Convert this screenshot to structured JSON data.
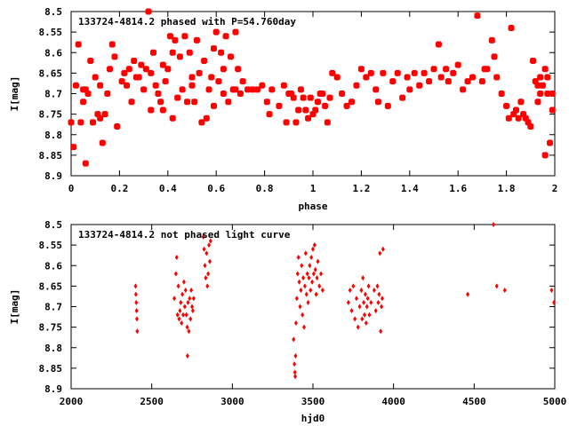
{
  "chart_data": [
    {
      "type": "scatter",
      "title": "133724-4814.2 phased with P=54.760day",
      "xlabel": "phase",
      "ylabel": "I[mag]",
      "xlim": [
        0,
        2
      ],
      "ylim": [
        8.5,
        8.9
      ],
      "y_inverted": true,
      "grid": false,
      "marker_color": "#ff0000",
      "marker": "filled-square",
      "x_ticks": [
        0,
        0.2,
        0.4,
        0.6,
        0.8,
        1,
        1.2,
        1.4,
        1.6,
        1.8,
        2
      ],
      "x_tick_labels": [
        "0",
        "0.2",
        "0.4",
        "0.6",
        "0.8",
        "1",
        "1.2",
        "1.4",
        "1.6",
        "1.8",
        "2"
      ],
      "y_ticks": [
        8.5,
        8.55,
        8.6,
        8.65,
        8.7,
        8.75,
        8.8,
        8.85,
        8.9
      ],
      "y_tick_labels": [
        "8.5",
        "8.55",
        "8.6",
        "8.65",
        "8.7",
        "8.75",
        "8.8",
        "8.85",
        "8.9"
      ],
      "points": [
        [
          0.0,
          8.77
        ],
        [
          0.01,
          8.83
        ],
        [
          0.02,
          8.68
        ],
        [
          0.03,
          8.58
        ],
        [
          0.04,
          8.77
        ],
        [
          0.05,
          8.69
        ],
        [
          0.05,
          8.72
        ],
        [
          0.06,
          8.87
        ],
        [
          0.06,
          8.69
        ],
        [
          0.07,
          8.7
        ],
        [
          0.08,
          8.62
        ],
        [
          0.09,
          8.77
        ],
        [
          0.1,
          8.66
        ],
        [
          0.11,
          8.75
        ],
        [
          0.12,
          8.76
        ],
        [
          0.12,
          8.68
        ],
        [
          0.13,
          8.82
        ],
        [
          0.14,
          8.75
        ],
        [
          0.15,
          8.7
        ],
        [
          0.16,
          8.64
        ],
        [
          0.17,
          8.58
        ],
        [
          0.18,
          8.61
        ],
        [
          0.19,
          8.78
        ],
        [
          0.21,
          8.67
        ],
        [
          0.22,
          8.65
        ],
        [
          0.23,
          8.68
        ],
        [
          0.24,
          8.64
        ],
        [
          0.25,
          8.72
        ],
        [
          0.26,
          8.62
        ],
        [
          0.27,
          8.66
        ],
        [
          0.28,
          8.66
        ],
        [
          0.29,
          8.63
        ],
        [
          0.3,
          8.69
        ],
        [
          0.31,
          8.64
        ],
        [
          0.32,
          8.5
        ],
        [
          0.33,
          8.74
        ],
        [
          0.33,
          8.65
        ],
        [
          0.34,
          8.6
        ],
        [
          0.35,
          8.68
        ],
        [
          0.36,
          8.7
        ],
        [
          0.37,
          8.72
        ],
        [
          0.38,
          8.63
        ],
        [
          0.38,
          8.74
        ],
        [
          0.39,
          8.67
        ],
        [
          0.4,
          8.64
        ],
        [
          0.41,
          8.56
        ],
        [
          0.42,
          8.6
        ],
        [
          0.42,
          8.76
        ],
        [
          0.43,
          8.57
        ],
        [
          0.44,
          8.71
        ],
        [
          0.45,
          8.61
        ],
        [
          0.46,
          8.69
        ],
        [
          0.47,
          8.56
        ],
        [
          0.48,
          8.72
        ],
        [
          0.49,
          8.6
        ],
        [
          0.5,
          8.66
        ],
        [
          0.5,
          8.68
        ],
        [
          0.51,
          8.72
        ],
        [
          0.52,
          8.57
        ],
        [
          0.53,
          8.65
        ],
        [
          0.54,
          8.77
        ],
        [
          0.55,
          8.62
        ],
        [
          0.56,
          8.76
        ],
        [
          0.57,
          8.69
        ],
        [
          0.58,
          8.66
        ],
        [
          0.59,
          8.59
        ],
        [
          0.59,
          8.73
        ],
        [
          0.6,
          8.55
        ],
        [
          0.61,
          8.67
        ],
        [
          0.62,
          8.6
        ],
        [
          0.63,
          8.7
        ],
        [
          0.63,
          8.64
        ],
        [
          0.64,
          8.56
        ],
        [
          0.65,
          8.72
        ],
        [
          0.66,
          8.61
        ],
        [
          0.67,
          8.69
        ],
        [
          0.68,
          8.55
        ],
        [
          0.68,
          8.69
        ],
        [
          0.69,
          8.64
        ],
        [
          0.7,
          8.7
        ],
        [
          0.71,
          8.67
        ],
        [
          0.73,
          8.69
        ],
        [
          0.75,
          8.69
        ],
        [
          0.77,
          8.69
        ],
        [
          0.79,
          8.68
        ],
        [
          0.81,
          8.72
        ],
        [
          0.82,
          8.75
        ],
        [
          0.83,
          8.69
        ],
        [
          0.86,
          8.73
        ],
        [
          0.88,
          8.68
        ],
        [
          0.89,
          8.77
        ],
        [
          0.9,
          8.7
        ],
        [
          0.91,
          8.7
        ],
        [
          0.92,
          8.71
        ],
        [
          0.93,
          8.77
        ],
        [
          0.94,
          8.74
        ],
        [
          0.95,
          8.69
        ],
        [
          0.96,
          8.71
        ],
        [
          0.97,
          8.74
        ],
        [
          0.98,
          8.76
        ],
        [
          0.99,
          8.71
        ],
        [
          1.0,
          8.75
        ],
        [
          1.01,
          8.74
        ],
        [
          1.02,
          8.72
        ],
        [
          1.03,
          8.7
        ],
        [
          1.04,
          8.7
        ],
        [
          1.05,
          8.73
        ],
        [
          1.06,
          8.77
        ],
        [
          1.07,
          8.71
        ],
        [
          1.08,
          8.65
        ],
        [
          1.1,
          8.66
        ],
        [
          1.12,
          8.7
        ],
        [
          1.14,
          8.73
        ],
        [
          1.16,
          8.72
        ],
        [
          1.18,
          8.68
        ],
        [
          1.2,
          8.64
        ],
        [
          1.22,
          8.66
        ],
        [
          1.24,
          8.65
        ],
        [
          1.26,
          8.69
        ],
        [
          1.27,
          8.72
        ],
        [
          1.29,
          8.65
        ],
        [
          1.31,
          8.73
        ],
        [
          1.33,
          8.67
        ],
        [
          1.35,
          8.65
        ],
        [
          1.37,
          8.71
        ],
        [
          1.39,
          8.66
        ],
        [
          1.4,
          8.69
        ],
        [
          1.42,
          8.65
        ],
        [
          1.44,
          8.68
        ],
        [
          1.46,
          8.65
        ],
        [
          1.48,
          8.67
        ],
        [
          1.5,
          8.64
        ],
        [
          1.52,
          8.58
        ],
        [
          1.53,
          8.66
        ],
        [
          1.55,
          8.64
        ],
        [
          1.56,
          8.67
        ],
        [
          1.58,
          8.65
        ],
        [
          1.6,
          8.63
        ],
        [
          1.62,
          8.69
        ],
        [
          1.64,
          8.67
        ],
        [
          1.66,
          8.66
        ],
        [
          1.68,
          8.51
        ],
        [
          1.7,
          8.67
        ],
        [
          1.71,
          8.64
        ],
        [
          1.72,
          8.64
        ],
        [
          1.74,
          8.57
        ],
        [
          1.75,
          8.61
        ],
        [
          1.76,
          8.66
        ],
        [
          1.78,
          8.7
        ],
        [
          1.8,
          8.73
        ],
        [
          1.81,
          8.76
        ],
        [
          1.82,
          8.54
        ],
        [
          1.83,
          8.75
        ],
        [
          1.84,
          8.74
        ],
        [
          1.85,
          8.76
        ],
        [
          1.86,
          8.72
        ],
        [
          1.87,
          8.75
        ],
        [
          1.88,
          8.76
        ],
        [
          1.89,
          8.77
        ],
        [
          1.9,
          8.78
        ],
        [
          1.91,
          8.62
        ],
        [
          1.92,
          8.67
        ],
        [
          1.93,
          8.68
        ],
        [
          1.93,
          8.72
        ],
        [
          1.94,
          8.66
        ],
        [
          1.94,
          8.7
        ],
        [
          1.95,
          8.68
        ],
        [
          1.96,
          8.64
        ],
        [
          1.96,
          8.85
        ],
        [
          1.97,
          8.7
        ],
        [
          1.97,
          8.66
        ],
        [
          1.98,
          8.82
        ],
        [
          1.99,
          8.74
        ],
        [
          1.99,
          8.7
        ]
      ]
    },
    {
      "type": "scatter",
      "title": "133724-4814.2 not phased light curve",
      "xlabel": "hjd0",
      "ylabel": "I[mag]",
      "xlim": [
        2000,
        5000
      ],
      "ylim": [
        8.5,
        8.9
      ],
      "y_inverted": true,
      "grid": false,
      "marker_color": "#ff0000",
      "marker": "diamond",
      "x_ticks": [
        2000,
        2500,
        3000,
        3500,
        4000,
        4500,
        5000
      ],
      "x_tick_labels": [
        "2000",
        "2500",
        "3000",
        "3500",
        "4000",
        "4500",
        "5000"
      ],
      "y_ticks": [
        8.5,
        8.55,
        8.6,
        8.65,
        8.7,
        8.75,
        8.8,
        8.85,
        8.9
      ],
      "y_tick_labels": [
        "8.5",
        "8.55",
        "8.6",
        "8.65",
        "8.7",
        "8.75",
        "8.8",
        "8.85",
        "8.9"
      ],
      "points": [
        [
          2400,
          8.65
        ],
        [
          2402,
          8.67
        ],
        [
          2404,
          8.69
        ],
        [
          2406,
          8.71
        ],
        [
          2408,
          8.73
        ],
        [
          2410,
          8.76
        ],
        [
          2640,
          8.68
        ],
        [
          2650,
          8.62
        ],
        [
          2655,
          8.58
        ],
        [
          2660,
          8.72
        ],
        [
          2665,
          8.65
        ],
        [
          2670,
          8.73
        ],
        [
          2675,
          8.71
        ],
        [
          2680,
          8.69
        ],
        [
          2685,
          8.74
        ],
        [
          2690,
          8.67
        ],
        [
          2695,
          8.72
        ],
        [
          2700,
          8.64
        ],
        [
          2705,
          8.7
        ],
        [
          2710,
          8.66
        ],
        [
          2715,
          8.72
        ],
        [
          2720,
          8.75
        ],
        [
          2722,
          8.82
        ],
        [
          2725,
          8.69
        ],
        [
          2730,
          8.76
        ],
        [
          2735,
          8.68
        ],
        [
          2740,
          8.73
        ],
        [
          2745,
          8.66
        ],
        [
          2750,
          8.7
        ],
        [
          2755,
          8.71
        ],
        [
          2760,
          8.68
        ],
        [
          2820,
          8.53
        ],
        [
          2825,
          8.56
        ],
        [
          2830,
          8.6
        ],
        [
          2835,
          8.63
        ],
        [
          2840,
          8.57
        ],
        [
          2845,
          8.65
        ],
        [
          2850,
          8.62
        ],
        [
          2855,
          8.55
        ],
        [
          2860,
          8.59
        ],
        [
          2865,
          8.54
        ],
        [
          3380,
          8.78
        ],
        [
          3385,
          8.84
        ],
        [
          3388,
          8.86
        ],
        [
          3390,
          8.87
        ],
        [
          3392,
          8.82
        ],
        [
          3395,
          8.74
        ],
        [
          3400,
          8.68
        ],
        [
          3405,
          8.62
        ],
        [
          3410,
          8.58
        ],
        [
          3415,
          8.64
        ],
        [
          3420,
          8.7
        ],
        [
          3425,
          8.66
        ],
        [
          3430,
          8.6
        ],
        [
          3435,
          8.72
        ],
        [
          3440,
          8.63
        ],
        [
          3445,
          8.75
        ],
        [
          3450,
          8.65
        ],
        [
          3455,
          8.57
        ],
        [
          3460,
          8.67
        ],
        [
          3465,
          8.62
        ],
        [
          3470,
          8.69
        ],
        [
          3475,
          8.63
        ],
        [
          3480,
          8.6
        ],
        [
          3485,
          8.66
        ],
        [
          3490,
          8.58
        ],
        [
          3495,
          8.64
        ],
        [
          3500,
          8.56
        ],
        [
          3505,
          8.62
        ],
        [
          3510,
          8.55
        ],
        [
          3515,
          8.61
        ],
        [
          3520,
          8.67
        ],
        [
          3525,
          8.63
        ],
        [
          3530,
          8.59
        ],
        [
          3540,
          8.65
        ],
        [
          3550,
          8.62
        ],
        [
          3560,
          8.66
        ],
        [
          3720,
          8.69
        ],
        [
          3730,
          8.66
        ],
        [
          3740,
          8.71
        ],
        [
          3750,
          8.65
        ],
        [
          3760,
          8.73
        ],
        [
          3770,
          8.68
        ],
        [
          3780,
          8.75
        ],
        [
          3790,
          8.7
        ],
        [
          3800,
          8.66
        ],
        [
          3805,
          8.73
        ],
        [
          3810,
          8.63
        ],
        [
          3815,
          8.69
        ],
        [
          3820,
          8.72
        ],
        [
          3825,
          8.67
        ],
        [
          3830,
          8.74
        ],
        [
          3835,
          8.7
        ],
        [
          3840,
          8.68
        ],
        [
          3845,
          8.65
        ],
        [
          3850,
          8.72
        ],
        [
          3860,
          8.69
        ],
        [
          3880,
          8.66
        ],
        [
          3890,
          8.71
        ],
        [
          3900,
          8.65
        ],
        [
          3905,
          8.69
        ],
        [
          3910,
          8.67
        ],
        [
          3915,
          8.57
        ],
        [
          3920,
          8.76
        ],
        [
          3925,
          8.7
        ],
        [
          3930,
          8.68
        ],
        [
          3935,
          8.56
        ],
        [
          4460,
          8.67
        ],
        [
          4620,
          8.5
        ],
        [
          4640,
          8.65
        ],
        [
          4690,
          8.66
        ],
        [
          4980,
          8.66
        ],
        [
          4995,
          8.69
        ]
      ]
    }
  ]
}
